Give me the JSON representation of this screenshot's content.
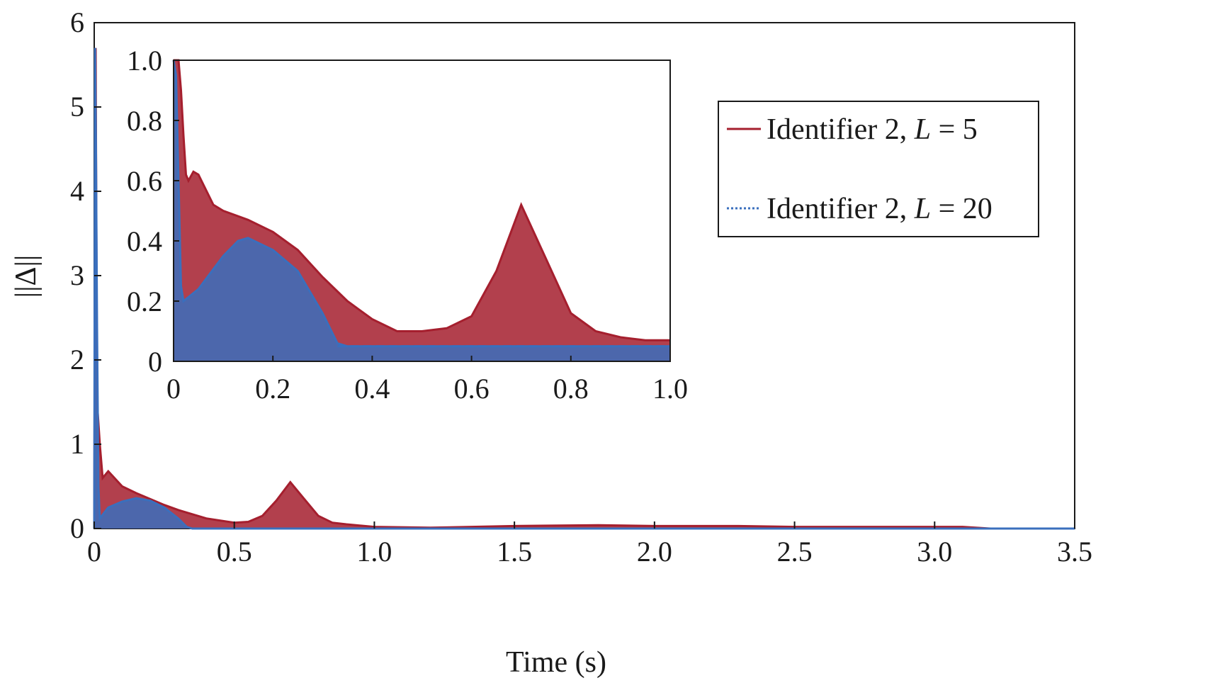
{
  "chart_data": {
    "type": "line",
    "xlabel": "Time (s)",
    "ylabel": "||Δ||",
    "xlim": [
      0,
      3.5
    ],
    "ylim": [
      0,
      6
    ],
    "x_ticks": [
      "0",
      "0.5",
      "1.0",
      "1.5",
      "2.0",
      "2.5",
      "3.0",
      "3.5"
    ],
    "y_ticks": [
      "0",
      "1",
      "2",
      "3",
      "4",
      "5",
      "6"
    ],
    "legend": {
      "placement": "top-right",
      "entries": [
        {
          "prefix": "Identifier 2, ",
          "var": "L",
          "suffix": " = 5",
          "color": "#a51f2e",
          "style": "solid"
        },
        {
          "prefix": "Identifier 2, ",
          "var": "L",
          "suffix": " = 20",
          "color": "#3a6fbd",
          "style": "dotted"
        }
      ]
    },
    "series": [
      {
        "color": "#a51f2e",
        "x": [
          0,
          0.005,
          0.01,
          0.02,
          0.03,
          0.05,
          0.1,
          0.15,
          0.2,
          0.25,
          0.3,
          0.4,
          0.5,
          0.55,
          0.6,
          0.65,
          0.7,
          0.75,
          0.8,
          0.85,
          0.9,
          1.0,
          1.2,
          1.5,
          1.8,
          2.0,
          2.3,
          2.5,
          2.8,
          3.0,
          3.1,
          3.2,
          3.5
        ],
        "y": [
          0,
          5.7,
          1.5,
          1.0,
          0.6,
          0.68,
          0.5,
          0.42,
          0.35,
          0.28,
          0.22,
          0.12,
          0.07,
          0.08,
          0.15,
          0.33,
          0.55,
          0.35,
          0.15,
          0.07,
          0.05,
          0.02,
          0.01,
          0.03,
          0.04,
          0.03,
          0.03,
          0.02,
          0.02,
          0.02,
          0.02,
          0.0,
          0.0
        ]
      },
      {
        "color": "#3a6fbd",
        "x": [
          0,
          0.003,
          0.006,
          0.01,
          0.015,
          0.02,
          0.05,
          0.1,
          0.15,
          0.2,
          0.25,
          0.3,
          0.33,
          0.35,
          1.0,
          2.0,
          3.5
        ],
        "y": [
          0,
          5.7,
          4.6,
          2.4,
          0.5,
          0.12,
          0.25,
          0.32,
          0.36,
          0.33,
          0.25,
          0.12,
          0.02,
          0.0,
          0.0,
          0.0,
          0.0
        ]
      }
    ],
    "inset": {
      "xlim": [
        0,
        1.0
      ],
      "ylim": [
        0,
        1.0
      ],
      "x_ticks": [
        "0",
        "0.2",
        "0.4",
        "0.6",
        "0.8",
        "1.0"
      ],
      "y_ticks": [
        "0",
        "0.2",
        "0.4",
        "0.6",
        "0.8",
        "1.0"
      ],
      "series": [
        {
          "color": "#a51f2e",
          "x": [
            0.0,
            0.01,
            0.015,
            0.02,
            0.025,
            0.03,
            0.04,
            0.05,
            0.08,
            0.1,
            0.15,
            0.2,
            0.25,
            0.3,
            0.35,
            0.4,
            0.45,
            0.5,
            0.55,
            0.6,
            0.65,
            0.7,
            0.75,
            0.8,
            0.85,
            0.9,
            0.95,
            1.0
          ],
          "y": [
            1.0,
            1.0,
            0.9,
            0.75,
            0.62,
            0.6,
            0.63,
            0.62,
            0.52,
            0.5,
            0.47,
            0.43,
            0.37,
            0.28,
            0.2,
            0.14,
            0.1,
            0.1,
            0.11,
            0.15,
            0.3,
            0.52,
            0.34,
            0.16,
            0.1,
            0.08,
            0.07,
            0.07
          ]
        },
        {
          "color": "#3a6fbd",
          "x": [
            0.0,
            0.005,
            0.01,
            0.015,
            0.02,
            0.05,
            0.1,
            0.13,
            0.15,
            0.2,
            0.25,
            0.3,
            0.33,
            0.35,
            0.5,
            0.7,
            1.0
          ],
          "y": [
            1.0,
            0.95,
            0.6,
            0.25,
            0.2,
            0.24,
            0.35,
            0.4,
            0.41,
            0.37,
            0.3,
            0.16,
            0.06,
            0.05,
            0.05,
            0.05,
            0.05
          ]
        }
      ]
    }
  }
}
